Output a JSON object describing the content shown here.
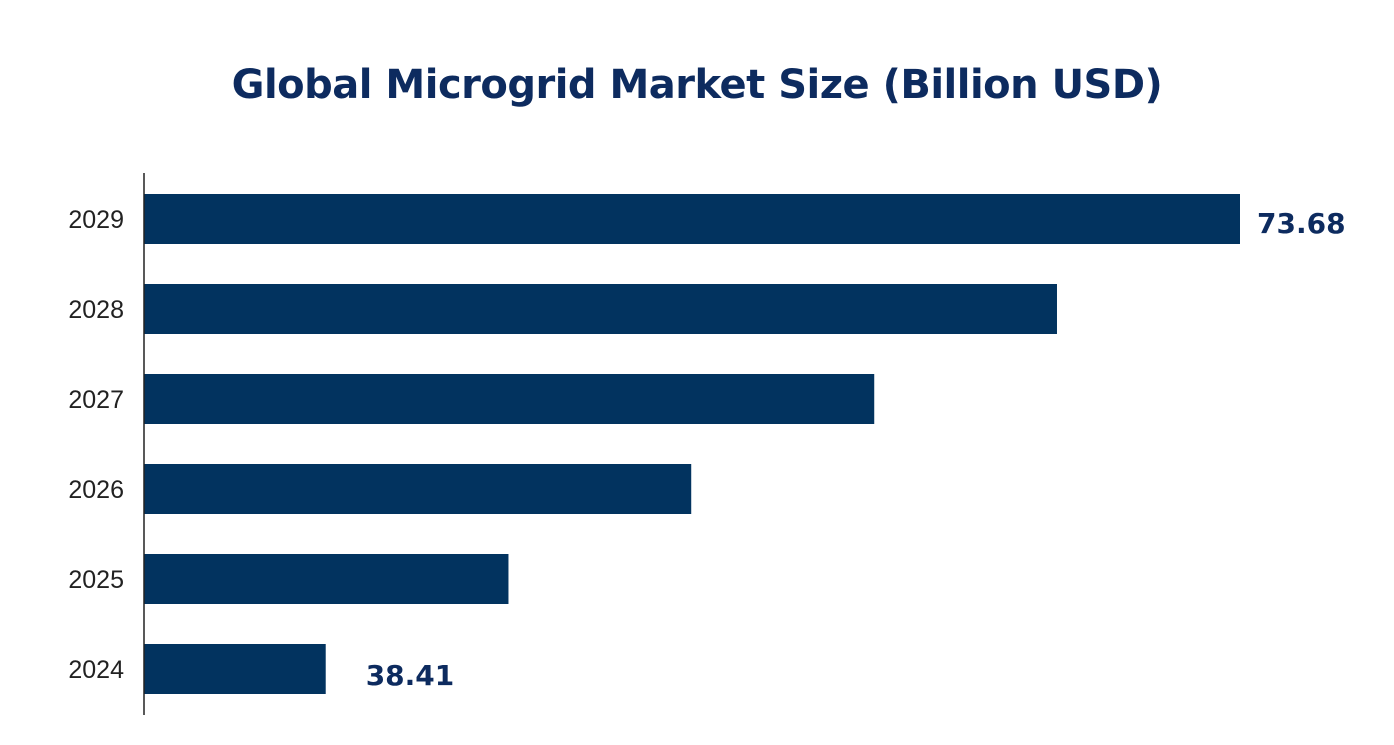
{
  "chart_data": {
    "type": "bar",
    "orientation": "horizontal",
    "title": "Global Microgrid Market Size (Billion USD)",
    "xlabel": "",
    "ylabel": "",
    "categories": [
      "2024",
      "2025",
      "2026",
      "2027",
      "2028",
      "2029"
    ],
    "values": [
      38.41,
      45.46,
      52.51,
      59.57,
      66.62,
      73.68
    ],
    "data_labels": {
      "2024": "38.41",
      "2029": "73.68"
    },
    "xlim": [
      31.4,
      73.68
    ],
    "grid": false,
    "legend": "none",
    "colors": {
      "bar": "#02335f",
      "title": "#0d2b5f",
      "data_label": "#0d2b5f",
      "tick_label": "#222222",
      "axis": "#222222"
    }
  }
}
